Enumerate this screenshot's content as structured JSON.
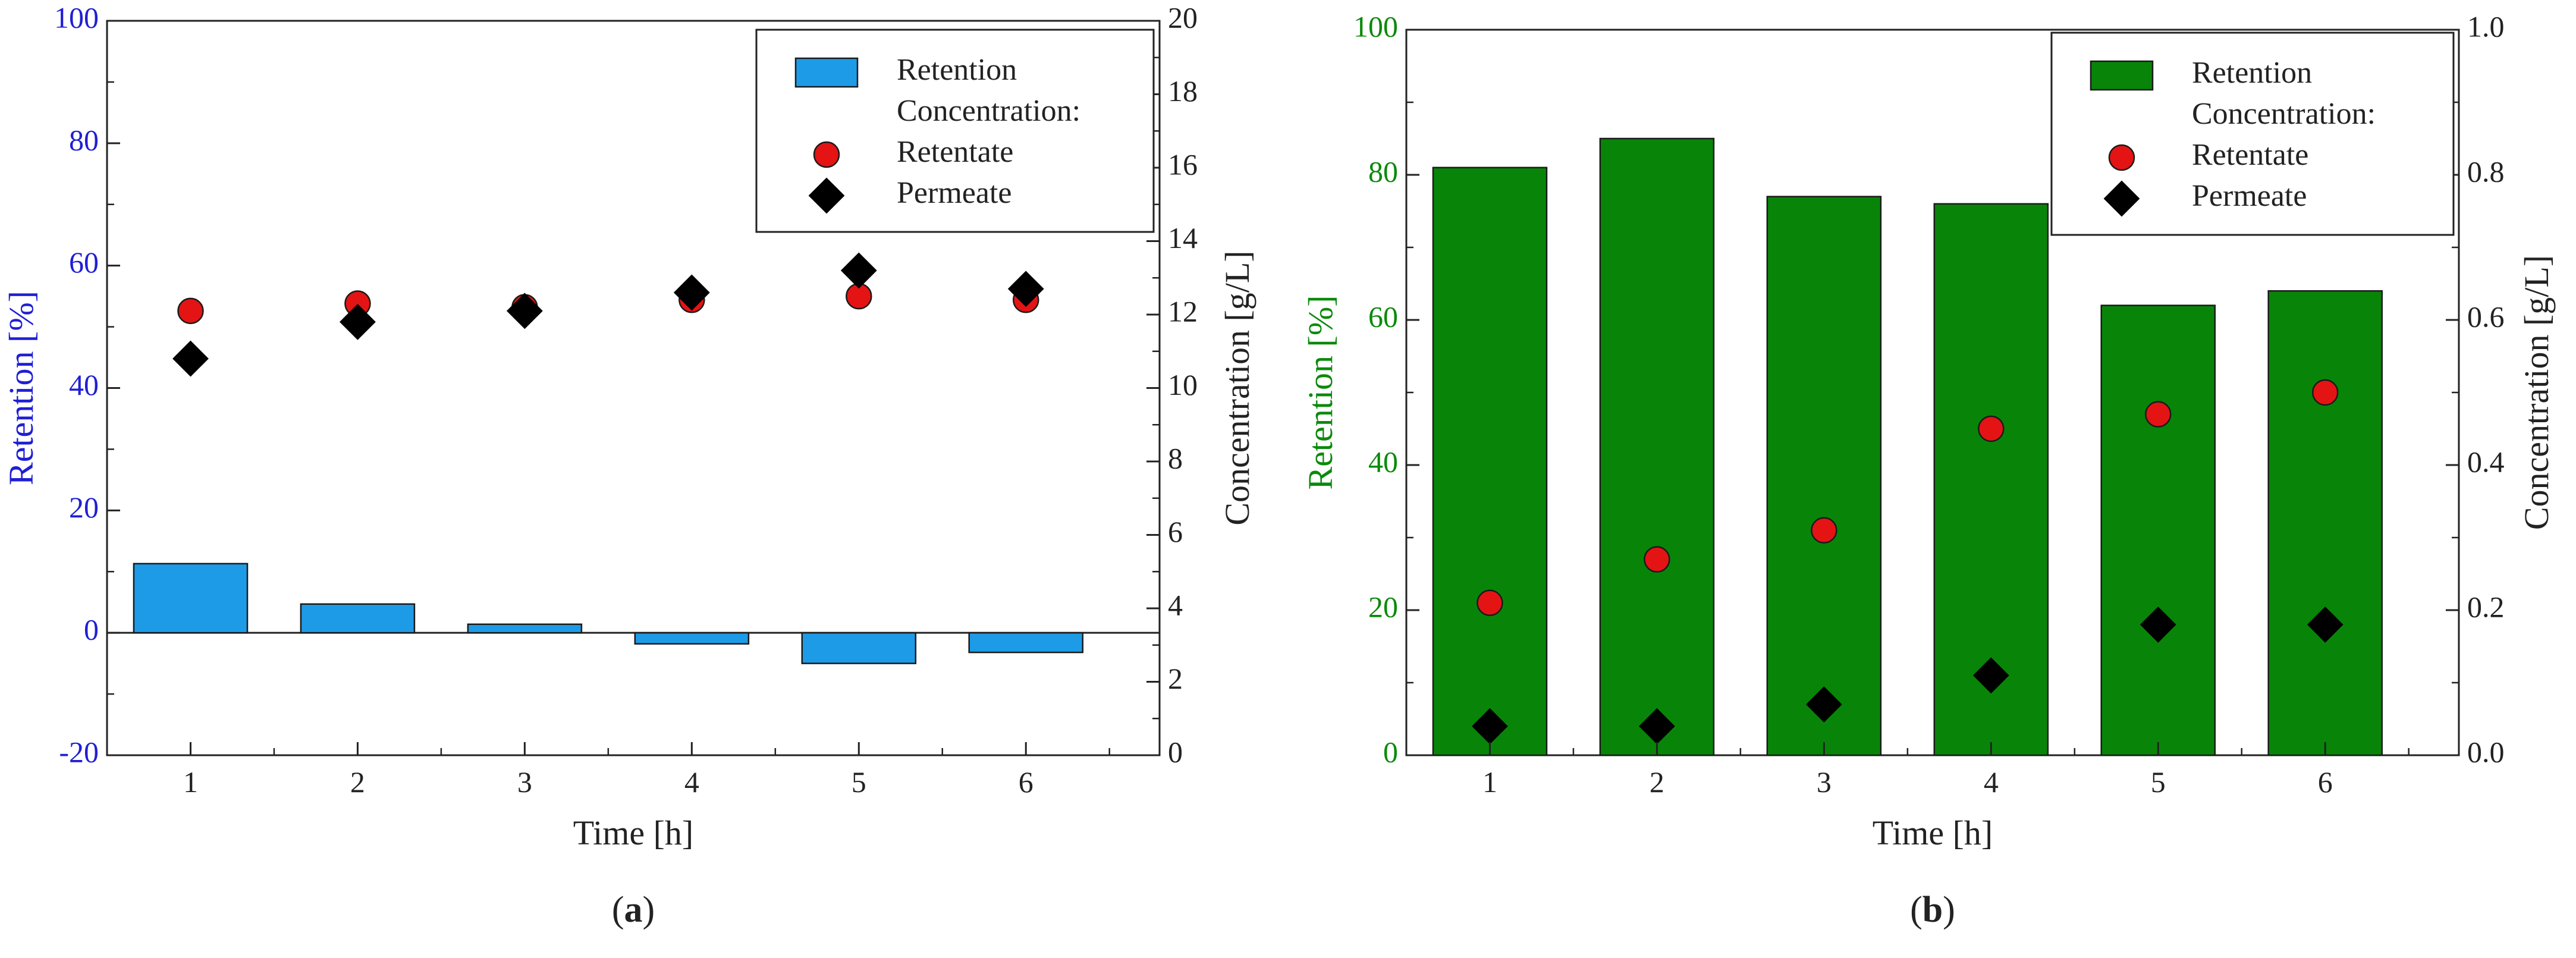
{
  "chart_data": [
    {
      "type": "bar",
      "panel_label": "(a)",
      "panel_label_parts": {
        "open": "(",
        "letter": "a",
        "close": ")"
      },
      "x": [
        1,
        2,
        3,
        4,
        5,
        6
      ],
      "xticks": [
        1,
        2,
        3,
        4,
        5,
        6
      ],
      "xlim": [
        0.5,
        6.8
      ],
      "xlabel": "Time [h]",
      "ylabel_left": "Retention [%]",
      "ylabel_right": "Concentration [g/L]",
      "ylim_left": [
        -20,
        100
      ],
      "yticks_left": [
        -20,
        0,
        20,
        40,
        60,
        80,
        100
      ],
      "ylim_right": [
        0,
        20
      ],
      "yticks_right": [
        0,
        2,
        4,
        6,
        8,
        10,
        12,
        14,
        16,
        18,
        20
      ],
      "zero_line": true,
      "left_axis_color": "#1f1fd4",
      "right_axis_color": "#222222",
      "bar_color": "#1e9be6",
      "series": [
        {
          "name": "Retention",
          "kind": "bar",
          "axis": "left",
          "values": [
            11.3,
            4.7,
            1.4,
            -1.8,
            -5.0,
            -3.2
          ]
        },
        {
          "name": "Retentate",
          "kind": "circle",
          "axis": "right",
          "color": "#e41414",
          "values": [
            12.1,
            12.3,
            12.2,
            12.4,
            12.5,
            12.4
          ]
        },
        {
          "name": "Permeate",
          "kind": "diamond",
          "axis": "right",
          "color": "#000000",
          "values": [
            10.8,
            11.8,
            12.1,
            12.6,
            13.2,
            12.7
          ]
        }
      ],
      "legend": {
        "position": "top-right",
        "entries": [
          "Retention",
          "Concentration:",
          "Retentate",
          "Permeate"
        ]
      }
    },
    {
      "type": "bar",
      "panel_label": "(b)",
      "panel_label_parts": {
        "open": "(",
        "letter": "b",
        "close": ")"
      },
      "x": [
        1,
        2,
        3,
        4,
        5,
        6
      ],
      "xticks": [
        1,
        2,
        3,
        4,
        5,
        6
      ],
      "xlim": [
        0.5,
        6.8
      ],
      "xlabel": "Time [h]",
      "ylabel_left": "Retention [%]",
      "ylabel_right": "Concentration [g/L]",
      "ylim_left": [
        0,
        100
      ],
      "yticks_left": [
        0,
        20,
        40,
        60,
        80,
        100
      ],
      "ylim_right": [
        0,
        1
      ],
      "yticks_right": [
        "0.0",
        "0.2",
        "0.4",
        "0.6",
        "0.8",
        "1.0"
      ],
      "zero_line": false,
      "left_axis_color": "#0b8a0b",
      "right_axis_color": "#222222",
      "bar_color": "#088508",
      "series": [
        {
          "name": "Retention",
          "kind": "bar",
          "axis": "left",
          "values": [
            81,
            85,
            77,
            76,
            62,
            64
          ]
        },
        {
          "name": "Retentate",
          "kind": "circle",
          "axis": "right",
          "color": "#e41414",
          "values": [
            0.21,
            0.27,
            0.31,
            0.45,
            0.47,
            0.5
          ]
        },
        {
          "name": "Permeate",
          "kind": "diamond",
          "axis": "right",
          "color": "#000000",
          "values": [
            0.04,
            0.04,
            0.07,
            0.11,
            0.18,
            0.18
          ]
        }
      ],
      "legend": {
        "position": "top-right",
        "entries": [
          "Retention",
          "Concentration:",
          "Retentate",
          "Permeate"
        ]
      }
    }
  ]
}
